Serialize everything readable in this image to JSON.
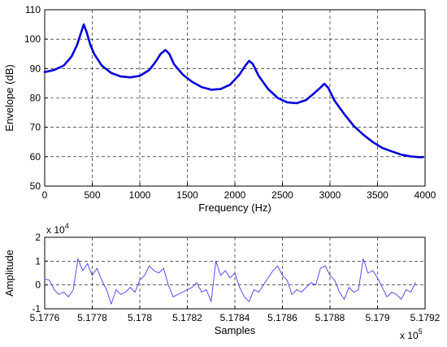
{
  "chart_data": [
    {
      "type": "line",
      "xlabel": "Frequency (Hz)",
      "ylabel": "Envelope (dB)",
      "xlim": [
        0,
        4000
      ],
      "ylim": [
        50,
        110
      ],
      "xticks": [
        "0",
        "500",
        "1000",
        "1500",
        "2000",
        "2500",
        "3000",
        "3500",
        "4000"
      ],
      "yticks": [
        "50",
        "60",
        "70",
        "80",
        "90",
        "100",
        "110"
      ],
      "grid": true,
      "series": [
        {
          "color": "#0000dd",
          "x": [
            0,
            100,
            200,
            280,
            340,
            380,
            410,
            440,
            480,
            520,
            600,
            700,
            800,
            900,
            1000,
            1100,
            1160,
            1220,
            1270,
            1310,
            1360,
            1450,
            1550,
            1650,
            1750,
            1850,
            1950,
            2050,
            2110,
            2150,
            2190,
            2250,
            2350,
            2450,
            2550,
            2650,
            2750,
            2830,
            2900,
            2940,
            2980,
            3050,
            3150,
            3250,
            3350,
            3450,
            3550,
            3650,
            3750,
            3850,
            3950,
            3980
          ],
          "values": [
            88.8,
            89.5,
            91,
            94,
            98,
            102,
            105,
            102.5,
            98,
            95,
            91,
            88.5,
            87.3,
            87,
            87.5,
            89.5,
            92,
            95,
            96.3,
            95,
            91.5,
            88,
            85.5,
            83.7,
            82.8,
            83,
            84.5,
            88,
            91,
            92.6,
            91.5,
            87.5,
            83,
            80,
            78.5,
            78.2,
            79.3,
            81.5,
            83.5,
            84.8,
            83.5,
            79,
            74.5,
            70.5,
            67.5,
            65,
            63,
            61.8,
            60.7,
            60.1,
            59.8,
            59.9
          ]
        }
      ]
    },
    {
      "type": "line",
      "xlabel": "Samples",
      "ylabel": "Amplitude",
      "xlim": [
        517760,
        517920
      ],
      "ylim": [
        -10000,
        20000
      ],
      "xticks": [
        "5.1776",
        "5.1778",
        "5.178",
        "5.1782",
        "5.1784",
        "5.1786",
        "5.1788",
        "5.179",
        "5.1792"
      ],
      "xmultiplier_base": "x 10",
      "xmultiplier_exp": "5",
      "yticks": [
        "-1",
        "0",
        "1",
        "2"
      ],
      "ymultiplier_base": "x 10",
      "ymultiplier_exp": "4",
      "grid": true,
      "series": [
        {
          "color": "#4040ee",
          "x": [
            517760,
            517762,
            517764,
            517766,
            517768,
            517770,
            517772,
            517774,
            517776,
            517778,
            517780,
            517782,
            517784,
            517786,
            517788,
            517790,
            517792,
            517794,
            517796,
            517798,
            517800,
            517802,
            517804,
            517806,
            517808,
            517810,
            517812,
            517814,
            517816,
            517818,
            517820,
            517822,
            517824,
            517826,
            517828,
            517830,
            517832,
            517834,
            517836,
            517838,
            517840,
            517842,
            517844,
            517846,
            517848,
            517850,
            517852,
            517854,
            517856,
            517858,
            517860,
            517862,
            517864,
            517866,
            517868,
            517870,
            517872,
            517874,
            517876,
            517878,
            517880,
            517882,
            517884,
            517886,
            517888,
            517890,
            517892,
            517894,
            517896,
            517898,
            517900,
            517902,
            517904,
            517906,
            517908,
            517910,
            517912,
            517914,
            517916
          ],
          "values": [
            2500,
            2000,
            -2000,
            -4000,
            -3000,
            -5000,
            -2000,
            11000,
            6000,
            9000,
            4000,
            7000,
            2000,
            -2000,
            -8000,
            -2000,
            -4000,
            -3000,
            -1000,
            -3000,
            2000,
            4000,
            8000,
            6000,
            5000,
            7000,
            0,
            -5000,
            -4000,
            -3000,
            -2000,
            -1000,
            1000,
            -3000,
            -2000,
            -7000,
            10000,
            4000,
            6000,
            3000,
            5000,
            -1000,
            -5000,
            -7000,
            -2000,
            -3000,
            0,
            3000,
            6000,
            8000,
            4000,
            2000,
            -4000,
            -2000,
            -3000,
            -1000,
            1000,
            0,
            7000,
            8000,
            4000,
            2000,
            -3000,
            -6000,
            -1000,
            -3000,
            -2000,
            11000,
            5000,
            6000,
            3000,
            -1000,
            -5000,
            -3000,
            -4000,
            -6000,
            -2000,
            -3000,
            1000
          ]
        }
      ]
    }
  ]
}
